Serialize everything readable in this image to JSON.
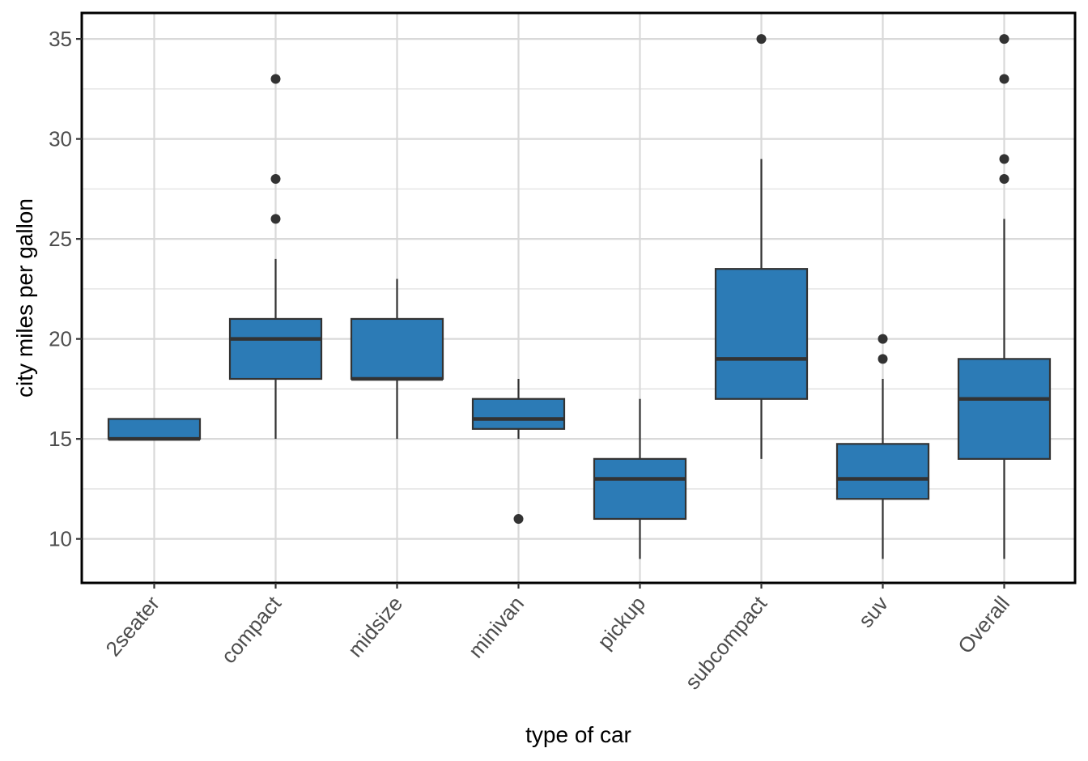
{
  "chart_data": {
    "type": "boxplot",
    "title": "",
    "xlabel": "type of car",
    "ylabel": "city miles per gallon",
    "ylim": [
      7.8,
      36.3
    ],
    "yticks": [
      10,
      15,
      20,
      25,
      30,
      35
    ],
    "grid": true,
    "legend": "none",
    "categories": [
      "2seater",
      "compact",
      "midsize",
      "minivan",
      "pickup",
      "subcompact",
      "suv",
      "Overall"
    ],
    "boxes": [
      {
        "category": "2seater",
        "min": 15,
        "q1": 15,
        "median": 15,
        "q3": 16,
        "max": 16,
        "outliers": []
      },
      {
        "category": "compact",
        "min": 15,
        "q1": 18,
        "median": 20,
        "q3": 21,
        "max": 24,
        "outliers": [
          26,
          28,
          33
        ]
      },
      {
        "category": "midsize",
        "min": 15,
        "q1": 18,
        "median": 18,
        "q3": 21,
        "max": 23,
        "outliers": []
      },
      {
        "category": "minivan",
        "min": 15,
        "q1": 15.5,
        "median": 16,
        "q3": 17,
        "max": 18,
        "outliers": [
          11
        ]
      },
      {
        "category": "pickup",
        "min": 9,
        "q1": 11,
        "median": 13,
        "q3": 14,
        "max": 17,
        "outliers": []
      },
      {
        "category": "subcompact",
        "min": 14,
        "q1": 17,
        "median": 19,
        "q3": 23.5,
        "max": 29,
        "outliers": [
          35
        ]
      },
      {
        "category": "suv",
        "min": 9,
        "q1": 12,
        "median": 13,
        "q3": 14.75,
        "max": 18,
        "outliers": [
          19,
          20
        ]
      },
      {
        "category": "Overall",
        "min": 9,
        "q1": 14,
        "median": 17,
        "q3": 19,
        "max": 26,
        "outliers": [
          28,
          29,
          33,
          35
        ]
      }
    ],
    "colors": {
      "box_fill": "#2c7bb6",
      "box_stroke": "#333333",
      "grid": "#d9d9d9",
      "panel_border": "#000000",
      "point": "#333333"
    }
  }
}
